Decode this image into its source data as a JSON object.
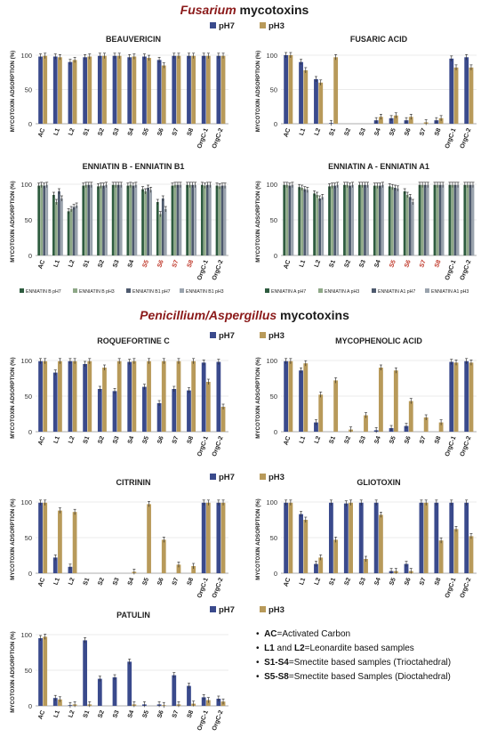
{
  "sections": [
    {
      "name": "Fusarium",
      "rest": " mycotoxins"
    },
    {
      "name": "Penicillium/Aspergillus",
      "rest": " mycotoxins"
    }
  ],
  "ylabel": "MYCOTOXIN ADSORPTION (%)",
  "colors": {
    "pH7": "#3a4a8c",
    "pH3": "#b89a5a",
    "eBpH7": "#2e5c3f",
    "eBpH3": "#8ea887",
    "eB1pH7": "#4e5a6e",
    "eB1pH3": "#9aa3ad",
    "s5_8_label": "#c0392b"
  },
  "notes": [
    {
      "key": "AC",
      "text": "=Activated Carbon"
    },
    {
      "key": "L1",
      "mid": " and ",
      "key2": "L2",
      "text": "=Leonardite based samples"
    },
    {
      "key": "S1-S4",
      "text": "=Smectite based samples (Trioctahedral)"
    },
    {
      "key": "S5-S8",
      "text": "=Smectite based Samples (Dioctahedral)"
    }
  ],
  "chart_data": [
    {
      "type": "bar",
      "title": "BEAUVERICIN",
      "categories": [
        "AC",
        "L1",
        "L2",
        "S1",
        "S2",
        "S3",
        "S4",
        "S5",
        "S6",
        "S7",
        "S8",
        "OrgC-1",
        "OrgC-2"
      ],
      "ylim": [
        0,
        100
      ],
      "yticks": [
        0,
        50,
        100
      ],
      "legend": "top",
      "series": [
        {
          "name": "pH7",
          "values": [
            98,
            98,
            90,
            97,
            99,
            99,
            97,
            98,
            93,
            99,
            99,
            99,
            99
          ]
        },
        {
          "name": "pH3",
          "values": [
            99,
            97,
            93,
            98,
            99,
            99,
            98,
            96,
            85,
            99,
            99,
            99,
            99
          ]
        }
      ]
    },
    {
      "type": "bar",
      "title": "FUSARIC ACID",
      "categories": [
        "AC",
        "L1",
        "L2",
        "S1",
        "S2",
        "S3",
        "S4",
        "S5",
        "S6",
        "S7",
        "S8",
        "OrgC-1",
        "OrgC-2"
      ],
      "ylim": [
        0,
        100
      ],
      "yticks": [
        0,
        50,
        100
      ],
      "legend": "top",
      "series": [
        {
          "name": "pH7",
          "values": [
            100,
            90,
            65,
            1,
            0,
            0,
            5,
            8,
            5,
            0,
            5,
            95,
            97
          ]
        },
        {
          "name": "pH3",
          "values": [
            100,
            78,
            60,
            97,
            0,
            0,
            10,
            12,
            10,
            2,
            8,
            82,
            82
          ]
        }
      ]
    },
    {
      "type": "bar",
      "title": "ENNIATIN B - ENNIATIN B1",
      "categories": [
        "AC",
        "L1",
        "L2",
        "S1",
        "S2",
        "S3",
        "S4",
        "S5",
        "S6",
        "S7",
        "S8",
        "OrgC-1",
        "OrgC-2"
      ],
      "ylim": [
        0,
        100
      ],
      "yticks": [
        0,
        50,
        100
      ],
      "legend": "bottom",
      "series": [
        {
          "name": "ENNIATIN B pH7",
          "values": [
            98,
            85,
            62,
            98,
            97,
            99,
            98,
            93,
            75,
            98,
            99,
            99,
            98
          ]
        },
        {
          "name": "ENNIATIN B pH3",
          "values": [
            99,
            75,
            65,
            99,
            98,
            99,
            99,
            90,
            58,
            99,
            99,
            98,
            97
          ]
        },
        {
          "name": "ENNIATIN B1 pH7",
          "values": [
            98,
            90,
            68,
            99,
            98,
            99,
            98,
            95,
            80,
            99,
            99,
            99,
            98
          ]
        },
        {
          "name": "ENNIATIN B1 pH3",
          "values": [
            99,
            80,
            70,
            99,
            99,
            99,
            99,
            92,
            65,
            99,
            99,
            99,
            98
          ]
        }
      ]
    },
    {
      "type": "bar",
      "title": "ENNIATIN A - ENNIATIN A1",
      "categories": [
        "AC",
        "L1",
        "L2",
        "S1",
        "S2",
        "S3",
        "S4",
        "S5",
        "S6",
        "S7",
        "S8",
        "OrgC-1",
        "OrgC-2"
      ],
      "ylim": [
        0,
        100
      ],
      "yticks": [
        0,
        50,
        100
      ],
      "legend": "bottom",
      "series": [
        {
          "name": "ENNIATIN A pH7",
          "values": [
            99,
            96,
            87,
            97,
            99,
            99,
            98,
            97,
            90,
            99,
            99,
            99,
            99
          ]
        },
        {
          "name": "ENNIATIN A pH3",
          "values": [
            99,
            95,
            85,
            98,
            99,
            99,
            98,
            96,
            85,
            99,
            99,
            99,
            99
          ]
        },
        {
          "name": "ENNIATIN A1 pH7",
          "values": [
            98,
            93,
            80,
            98,
            98,
            99,
            98,
            95,
            82,
            99,
            99,
            99,
            99
          ]
        },
        {
          "name": "ENNIATIN A1 pH3",
          "values": [
            99,
            92,
            82,
            99,
            99,
            99,
            99,
            94,
            75,
            99,
            99,
            99,
            99
          ]
        }
      ]
    },
    {
      "type": "bar",
      "title": "ROQUEFORTINE C",
      "categories": [
        "AC",
        "L1",
        "L2",
        "S1",
        "S2",
        "S3",
        "S4",
        "S5",
        "S6",
        "S7",
        "S8",
        "OrgC-1",
        "OrgC-2"
      ],
      "ylim": [
        0,
        100
      ],
      "yticks": [
        0,
        50,
        100
      ],
      "legend": "top",
      "series": [
        {
          "name": "pH7",
          "values": [
            99,
            83,
            99,
            95,
            60,
            57,
            98,
            63,
            40,
            60,
            58,
            97,
            98
          ]
        },
        {
          "name": "pH3",
          "values": [
            99,
            99,
            99,
            99,
            90,
            99,
            99,
            99,
            99,
            99,
            99,
            70,
            35
          ]
        }
      ]
    },
    {
      "type": "bar",
      "title": "MYCOPHENOLIC ACID",
      "categories": [
        "AC",
        "L1",
        "L2",
        "S1",
        "S2",
        "S3",
        "S4",
        "S5",
        "S6",
        "S7",
        "S8",
        "OrgC-1",
        "OrgC-2"
      ],
      "ylim": [
        0,
        100
      ],
      "yticks": [
        0,
        50,
        100
      ],
      "legend": "top",
      "series": [
        {
          "name": "pH7",
          "values": [
            99,
            86,
            13,
            0,
            0,
            0,
            2,
            5,
            8,
            0,
            0,
            98,
            99
          ]
        },
        {
          "name": "pH3",
          "values": [
            99,
            96,
            52,
            72,
            3,
            23,
            90,
            86,
            43,
            20,
            13,
            97,
            97
          ]
        }
      ]
    },
    {
      "type": "bar",
      "title": "CITRININ",
      "categories": [
        "AC",
        "L1",
        "L2",
        "S1",
        "S2",
        "S3",
        "S4",
        "S5",
        "S6",
        "S7",
        "S8",
        "OrgC-1",
        "OrgC-2"
      ],
      "ylim": [
        0,
        100
      ],
      "yticks": [
        0,
        50,
        100
      ],
      "legend": "top",
      "series": [
        {
          "name": "pH7",
          "values": [
            99,
            22,
            9,
            0,
            0,
            0,
            0,
            0,
            0,
            0,
            0,
            99,
            99
          ]
        },
        {
          "name": "pH3",
          "values": [
            99,
            88,
            86,
            0,
            0,
            0,
            2,
            97,
            47,
            12,
            10,
            99,
            99
          ]
        }
      ]
    },
    {
      "type": "bar",
      "title": "GLIOTOXIN",
      "categories": [
        "AC",
        "L1",
        "L2",
        "S1",
        "S2",
        "S3",
        "S4",
        "S5",
        "S6",
        "S7",
        "S8",
        "OrgC-1",
        "OrgC-2"
      ],
      "ylim": [
        0,
        100
      ],
      "yticks": [
        0,
        50,
        100
      ],
      "legend": "top",
      "series": [
        {
          "name": "pH7",
          "values": [
            99,
            83,
            13,
            99,
            98,
            99,
            99,
            3,
            13,
            99,
            99,
            99,
            99
          ]
        },
        {
          "name": "pH3",
          "values": [
            99,
            75,
            22,
            47,
            99,
            20,
            82,
            3,
            3,
            99,
            46,
            62,
            52
          ]
        }
      ]
    },
    {
      "type": "bar",
      "title": "PATULIN",
      "categories": [
        "AC",
        "L1",
        "L2",
        "S1",
        "S2",
        "S3",
        "S4",
        "S5",
        "S6",
        "S7",
        "S8",
        "OrgC-1",
        "OrgC-2"
      ],
      "ylim": [
        0,
        100
      ],
      "yticks": [
        0,
        50,
        100
      ],
      "legend": "top",
      "series": [
        {
          "name": "pH7",
          "values": [
            95,
            11,
            1,
            92,
            38,
            40,
            62,
            2,
            2,
            43,
            28,
            12,
            10
          ]
        },
        {
          "name": "pH3",
          "values": [
            97,
            9,
            2,
            2,
            0,
            0,
            2,
            0,
            1,
            2,
            3,
            8,
            6
          ]
        }
      ]
    }
  ]
}
